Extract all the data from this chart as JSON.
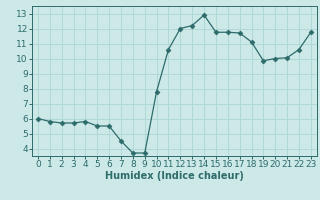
{
  "x": [
    0,
    1,
    2,
    3,
    4,
    5,
    6,
    7,
    8,
    9,
    10,
    11,
    12,
    13,
    14,
    15,
    16,
    17,
    18,
    19,
    20,
    21,
    22,
    23
  ],
  "y": [
    6.0,
    5.8,
    5.7,
    5.7,
    5.8,
    5.5,
    5.5,
    4.5,
    3.7,
    3.7,
    7.8,
    10.6,
    12.0,
    12.2,
    12.9,
    11.75,
    11.75,
    11.7,
    11.1,
    9.85,
    10.0,
    10.05,
    10.6,
    11.75
  ],
  "xlabel": "Humidex (Indice chaleur)",
  "xlim": [
    -0.5,
    23.5
  ],
  "ylim": [
    3.5,
    13.5
  ],
  "yticks": [
    4,
    5,
    6,
    7,
    8,
    9,
    10,
    11,
    12,
    13
  ],
  "xticks": [
    0,
    1,
    2,
    3,
    4,
    5,
    6,
    7,
    8,
    9,
    10,
    11,
    12,
    13,
    14,
    15,
    16,
    17,
    18,
    19,
    20,
    21,
    22,
    23
  ],
  "line_color": "#2e6b6b",
  "marker": "D",
  "marker_size": 2.5,
  "bg_color": "#cce9e8",
  "grid_color": "#b0d8d6",
  "xlabel_fontsize": 7,
  "tick_fontsize": 6.5
}
